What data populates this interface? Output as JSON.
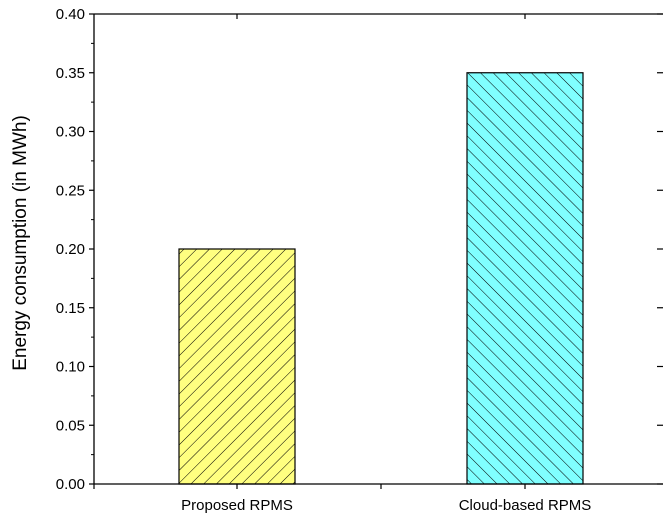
{
  "chart_data": {
    "type": "bar",
    "categories": [
      "Proposed RPMS",
      "Cloud-based RPMS"
    ],
    "values": [
      0.2,
      0.35
    ],
    "xlabel": "",
    "ylabel": "Energy consumption (in MWh)",
    "ylim": [
      0,
      0.4
    ],
    "yticks": [
      "0.00",
      "0.05",
      "0.10",
      "0.15",
      "0.20",
      "0.25",
      "0.30",
      "0.35",
      "0.40"
    ],
    "grid": false,
    "bar_styles": [
      {
        "fill": "#ffff80",
        "stroke": "#000000",
        "hatch": "forward-diagonal"
      },
      {
        "fill": "#80ffff",
        "stroke": "#000000",
        "hatch": "back-diagonal"
      }
    ]
  }
}
